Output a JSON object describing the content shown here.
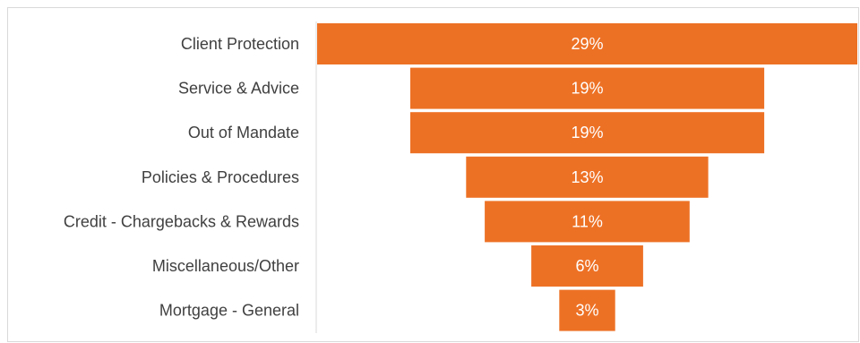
{
  "chart_data": {
    "type": "bar",
    "orientation": "horizontal-funnel",
    "categories": [
      "Client Protection",
      "Service & Advice",
      "Out of Mandate",
      "Policies & Procedures",
      "Credit - Chargebacks & Rewards",
      "Miscellaneous/Other",
      "Mortgage - General"
    ],
    "values": [
      29,
      19,
      19,
      13,
      11,
      6,
      3
    ],
    "data_labels": [
      "29%",
      "19%",
      "19%",
      "13%",
      "11%",
      "6%",
      "3%"
    ],
    "unit": "%",
    "colors": {
      "bar": "#ED7125",
      "bar_text": "#FFFFFF",
      "category_text": "#404040",
      "axis_line": "#D9D9D9"
    },
    "grid": false,
    "legend": "none"
  }
}
